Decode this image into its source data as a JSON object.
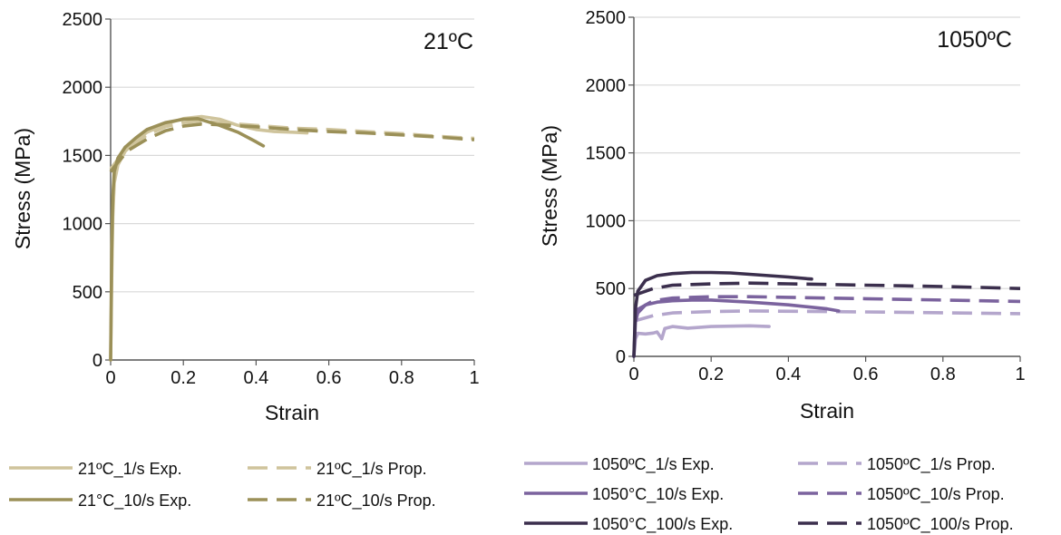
{
  "chart_data": [
    {
      "type": "line",
      "title": "21ºC",
      "xlabel": "Strain",
      "ylabel": "Stress (MPa)",
      "xlim": [
        0,
        1
      ],
      "ylim": [
        0,
        2500
      ],
      "x_ticks": [
        "0",
        "0.2",
        "0.4",
        "0.6",
        "0.8",
        "1"
      ],
      "y_ticks": [
        "0",
        "500",
        "1000",
        "1500",
        "2000",
        "2500"
      ],
      "grid": "horizontal",
      "legend_position": "bottom",
      "series": [
        {
          "name": "21ºC_1/s Exp.",
          "style": "solid",
          "color": "#cfc49c",
          "points": [
            [
              0,
              0
            ],
            [
              0.003,
              600
            ],
            [
              0.006,
              1050
            ],
            [
              0.01,
              1300
            ],
            [
              0.02,
              1430
            ],
            [
              0.04,
              1530
            ],
            [
              0.07,
              1610
            ],
            [
              0.1,
              1670
            ],
            [
              0.15,
              1730
            ],
            [
              0.2,
              1770
            ],
            [
              0.25,
              1785
            ],
            [
              0.3,
              1765
            ],
            [
              0.35,
              1720
            ],
            [
              0.4,
              1690
            ],
            [
              0.45,
              1675
            ],
            [
              0.5,
              1670
            ],
            [
              0.54,
              1665
            ]
          ]
        },
        {
          "name": "21ºC_1/s Prop.",
          "style": "dashed",
          "color": "#cfc49c",
          "points": [
            [
              0,
              1400
            ],
            [
              0.02,
              1470
            ],
            [
              0.05,
              1560
            ],
            [
              0.1,
              1650
            ],
            [
              0.15,
              1710
            ],
            [
              0.2,
              1740
            ],
            [
              0.25,
              1755
            ],
            [
              0.3,
              1740
            ],
            [
              0.4,
              1720
            ],
            [
              0.5,
              1700
            ],
            [
              0.6,
              1690
            ],
            [
              0.7,
              1675
            ],
            [
              0.8,
              1660
            ],
            [
              0.9,
              1640
            ],
            [
              1.0,
              1625
            ]
          ]
        },
        {
          "name": "21°C_10/s Exp.",
          "style": "solid",
          "color": "#9b9058",
          "points": [
            [
              0,
              0
            ],
            [
              0.003,
              800
            ],
            [
              0.006,
              1200
            ],
            [
              0.01,
              1380
            ],
            [
              0.02,
              1480
            ],
            [
              0.04,
              1560
            ],
            [
              0.07,
              1630
            ],
            [
              0.1,
              1690
            ],
            [
              0.15,
              1740
            ],
            [
              0.2,
              1765
            ],
            [
              0.24,
              1770
            ],
            [
              0.3,
              1720
            ],
            [
              0.35,
              1670
            ],
            [
              0.4,
              1600
            ],
            [
              0.42,
              1570
            ]
          ]
        },
        {
          "name": "21ºC_10/s Prop.",
          "style": "dashed",
          "color": "#9b9058",
          "points": [
            [
              0,
              1380
            ],
            [
              0.02,
              1450
            ],
            [
              0.05,
              1540
            ],
            [
              0.1,
              1620
            ],
            [
              0.15,
              1680
            ],
            [
              0.2,
              1715
            ],
            [
              0.25,
              1730
            ],
            [
              0.3,
              1725
            ],
            [
              0.4,
              1710
            ],
            [
              0.5,
              1690
            ],
            [
              0.6,
              1675
            ],
            [
              0.7,
              1665
            ],
            [
              0.8,
              1650
            ],
            [
              0.9,
              1635
            ],
            [
              1.0,
              1615
            ]
          ]
        }
      ]
    },
    {
      "type": "line",
      "title": "1050ºC",
      "xlabel": "Strain",
      "ylabel": "Stress (MPa)",
      "xlim": [
        0,
        1
      ],
      "ylim": [
        0,
        2500
      ],
      "x_ticks": [
        "0",
        "0.2",
        "0.4",
        "0.6",
        "0.8",
        "1"
      ],
      "y_ticks": [
        "0",
        "500",
        "1000",
        "1500",
        "2000",
        "2500"
      ],
      "grid": "horizontal",
      "legend_position": "bottom",
      "series": [
        {
          "name": "1050ºC_1/s Exp.",
          "style": "solid",
          "color": "#b4a6cc",
          "points": [
            [
              0,
              0
            ],
            [
              0.004,
              130
            ],
            [
              0.01,
              170
            ],
            [
              0.03,
              165
            ],
            [
              0.05,
              172
            ],
            [
              0.06,
              180
            ],
            [
              0.07,
              140
            ],
            [
              0.072,
              130
            ],
            [
              0.08,
              205
            ],
            [
              0.1,
              220
            ],
            [
              0.14,
              208
            ],
            [
              0.2,
              220
            ],
            [
              0.3,
              225
            ],
            [
              0.35,
              220
            ]
          ]
        },
        {
          "name": "1050ºC_1/s Prop.",
          "style": "dashed",
          "color": "#b4a6cc",
          "points": [
            [
              0,
              260
            ],
            [
              0.05,
              300
            ],
            [
              0.1,
              320
            ],
            [
              0.2,
              330
            ],
            [
              0.3,
              335
            ],
            [
              0.5,
              330
            ],
            [
              0.7,
              325
            ],
            [
              0.9,
              318
            ],
            [
              1.0,
              315
            ]
          ]
        },
        {
          "name": "1050°C_10/s Exp.",
          "style": "solid",
          "color": "#7b639e",
          "points": [
            [
              0,
              0
            ],
            [
              0.004,
              250
            ],
            [
              0.01,
              320
            ],
            [
              0.03,
              380
            ],
            [
              0.06,
              400
            ],
            [
              0.1,
              410
            ],
            [
              0.15,
              415
            ],
            [
              0.2,
              415
            ],
            [
              0.3,
              400
            ],
            [
              0.4,
              380
            ],
            [
              0.5,
              350
            ],
            [
              0.53,
              335
            ]
          ]
        },
        {
          "name": "1050ºC_10/s Prop.",
          "style": "dashed",
          "color": "#7b639e",
          "points": [
            [
              0,
              330
            ],
            [
              0.05,
              410
            ],
            [
              0.1,
              430
            ],
            [
              0.2,
              440
            ],
            [
              0.3,
              440
            ],
            [
              0.4,
              435
            ],
            [
              0.5,
              430
            ],
            [
              0.6,
              425
            ],
            [
              0.7,
              420
            ],
            [
              0.8,
              415
            ],
            [
              0.9,
              410
            ],
            [
              1.0,
              405
            ]
          ]
        },
        {
          "name": "1050°C_100/s Exp.",
          "style": "solid",
          "color": "#3b2f4d",
          "points": [
            [
              0,
              0
            ],
            [
              0.004,
              350
            ],
            [
              0.01,
              480
            ],
            [
              0.03,
              560
            ],
            [
              0.06,
              595
            ],
            [
              0.1,
              610
            ],
            [
              0.15,
              618
            ],
            [
              0.2,
              618
            ],
            [
              0.25,
              615
            ],
            [
              0.3,
              605
            ],
            [
              0.35,
              595
            ],
            [
              0.4,
              585
            ],
            [
              0.45,
              572
            ],
            [
              0.46,
              570
            ]
          ]
        },
        {
          "name": "1050ºC_100/s Prop.",
          "style": "dashed",
          "color": "#3b2f4d",
          "points": [
            [
              0,
              450
            ],
            [
              0.05,
              500
            ],
            [
              0.1,
              525
            ],
            [
              0.2,
              535
            ],
            [
              0.3,
              540
            ],
            [
              0.4,
              535
            ],
            [
              0.5,
              530
            ],
            [
              0.6,
              525
            ],
            [
              0.7,
              520
            ],
            [
              0.8,
              515
            ],
            [
              0.9,
              508
            ],
            [
              1.0,
              500
            ]
          ]
        }
      ]
    }
  ]
}
